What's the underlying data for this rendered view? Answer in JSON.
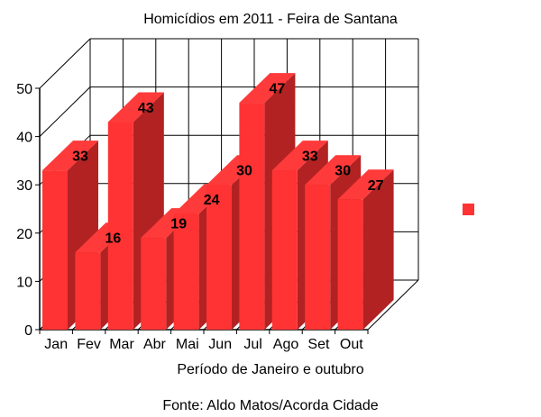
{
  "chart_data": {
    "type": "bar",
    "style": "3d",
    "title": "Homicídios em 2011 - Feira de Santana",
    "xlabel": "Período de Janeiro e outubro",
    "ylabel": "",
    "source": "Fonte: Aldo Matos/Acorda Cidade",
    "categories": [
      "Jan",
      "Fev",
      "Mar",
      "Abr",
      "Mai",
      "Jun",
      "Jul",
      "Ago",
      "Set",
      "Out"
    ],
    "values": [
      33,
      16,
      43,
      19,
      24,
      30,
      47,
      33,
      30,
      27
    ],
    "ylim": [
      0,
      50
    ],
    "yticks": [
      0,
      10,
      20,
      30,
      40,
      50
    ],
    "grid": true,
    "legend": {
      "placement": "right",
      "entries": [
        ""
      ]
    },
    "colors": {
      "bar_front": "#ff3333",
      "bar_side": "#b22222",
      "bar_top": "#ff3a3a",
      "grid": "#000000"
    }
  }
}
